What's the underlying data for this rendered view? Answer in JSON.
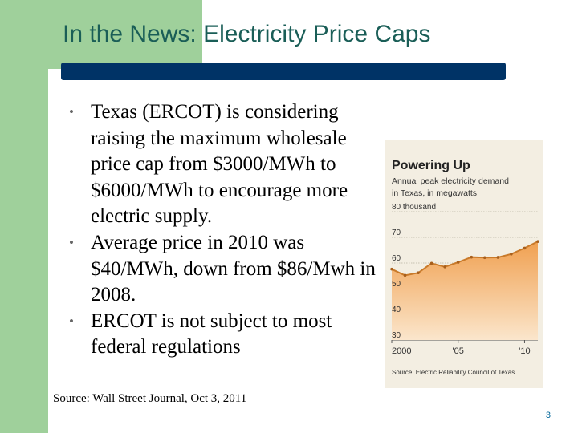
{
  "slide": {
    "title": "In the News: Electricity Price Caps",
    "bullets": [
      "Texas (ERCOT) is considering raising the maximum wholesale price cap from  $3000/MWh to $6000/MWh to encourage more electric supply.",
      "Average price in 2010 was $40/MWh, down from $86/Mwh in 2008.",
      "ERCOT is not subject to most federal regulations"
    ],
    "source": "Source: Wall Street Journal, Oct 3, 2011",
    "page_number": "3",
    "bullet_glyph": "•"
  },
  "colors": {
    "accent_green": "#9fd09b",
    "title_bar": "#003366",
    "title_text": "#1a5e57",
    "chart_line": "#c97a2a",
    "chart_fill": "#f0a050"
  },
  "chart_data": {
    "type": "area",
    "title": "Powering Up",
    "subtitle_lines": [
      "Annual peak electricity demand",
      "in Texas, in megawatts"
    ],
    "x": [
      2000,
      2001,
      2002,
      2003,
      2004,
      2005,
      2006,
      2007,
      2008,
      2009,
      2010,
      2011
    ],
    "values": [
      57.6,
      55.2,
      56.2,
      59.9,
      58.5,
      60.3,
      62.3,
      62.1,
      62.2,
      63.5,
      65.8,
      68.4
    ],
    "y_ticks": [
      80,
      70,
      60,
      50,
      40,
      30
    ],
    "y_tick_labels": [
      "80 thousand",
      "70",
      "60",
      "50",
      "40",
      "30"
    ],
    "x_ticks": [
      2000,
      2005,
      2010
    ],
    "x_tick_labels": [
      "2000",
      "'05",
      "'10"
    ],
    "ylim": [
      30,
      80
    ],
    "xlim": [
      2000,
      2011
    ],
    "source": "Source: Electric Reliability Council of Texas"
  }
}
